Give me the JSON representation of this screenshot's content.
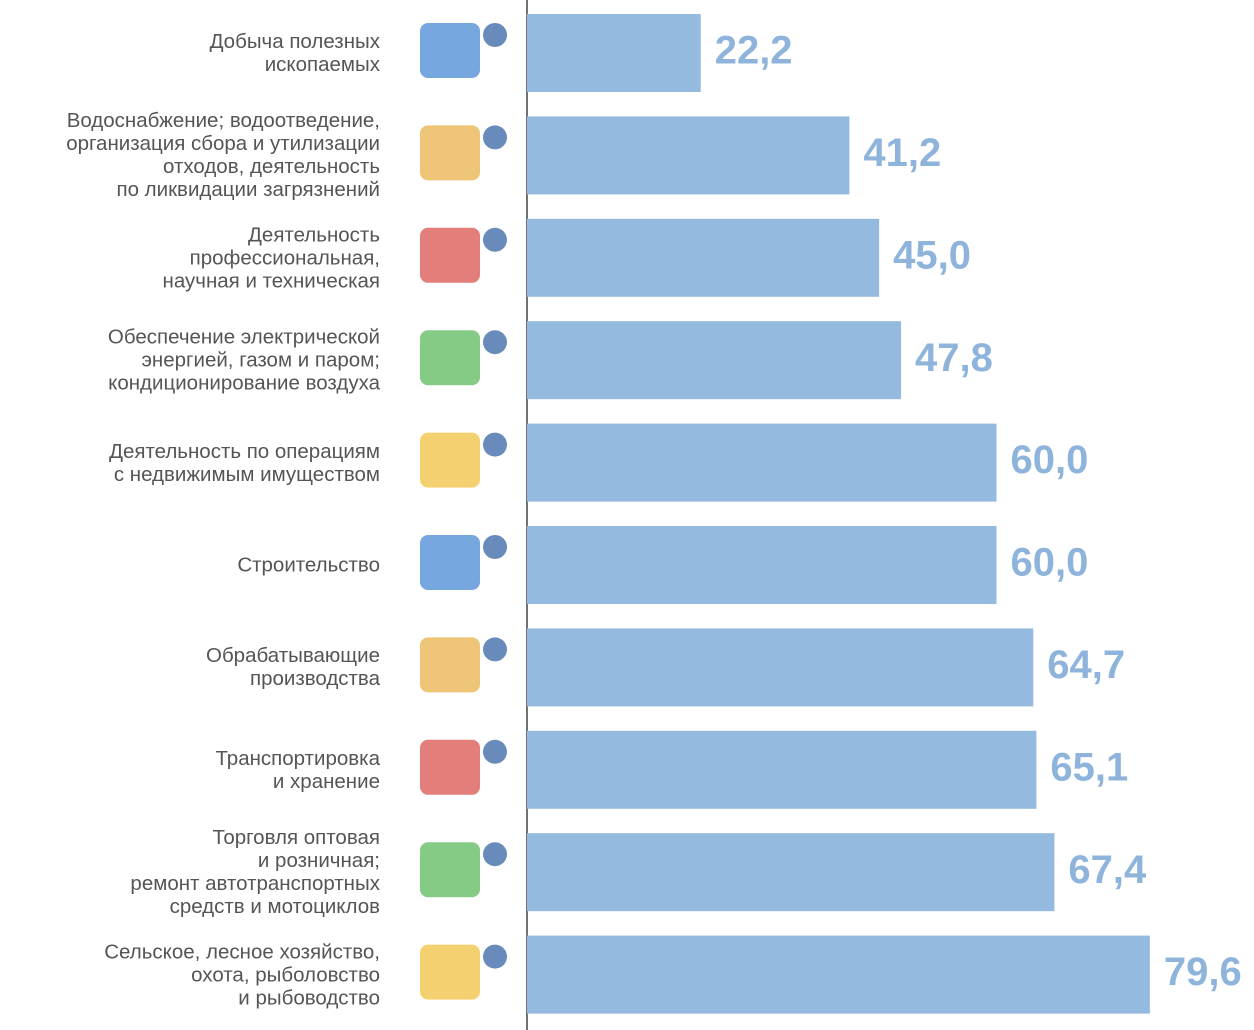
{
  "chart_data": {
    "type": "bar",
    "orientation": "horizontal",
    "categories": [
      "Добыча полезных\nископаемых",
      "Водоснабжение; водоотведение,\nорганизация сбора и утилизации\nотходов, деятельность\nпо ликвидации загрязнений",
      "Деятельность\nпрофессиональная,\nнаучная и техническая",
      "Обеспечение электрической\nэнергией, газом и паром;\nкондиционирование воздуха",
      "Деятельность по операциям\nс недвижимым имуществом",
      "Строительство",
      "Обрабатывающие\nпроизводства",
      "Транспортировка\nи хранение",
      "Торговля оптовая\nи розничная;\nремонт автотранспортных\nсредств и мотоциклов",
      "Сельское, лесное хозяйство,\nохота, рыболовство\nи рыбоводство"
    ],
    "values": [
      22.2,
      41.2,
      45.0,
      47.8,
      60.0,
      60.0,
      64.7,
      65.1,
      67.4,
      79.6
    ],
    "value_labels": [
      "22,2",
      "41,2",
      "45,0",
      "47,8",
      "60,0",
      "60,0",
      "64,7",
      "65,1",
      "67,4",
      "79,6"
    ],
    "color": "#95bae0",
    "xlim": [
      0,
      80
    ]
  }
}
